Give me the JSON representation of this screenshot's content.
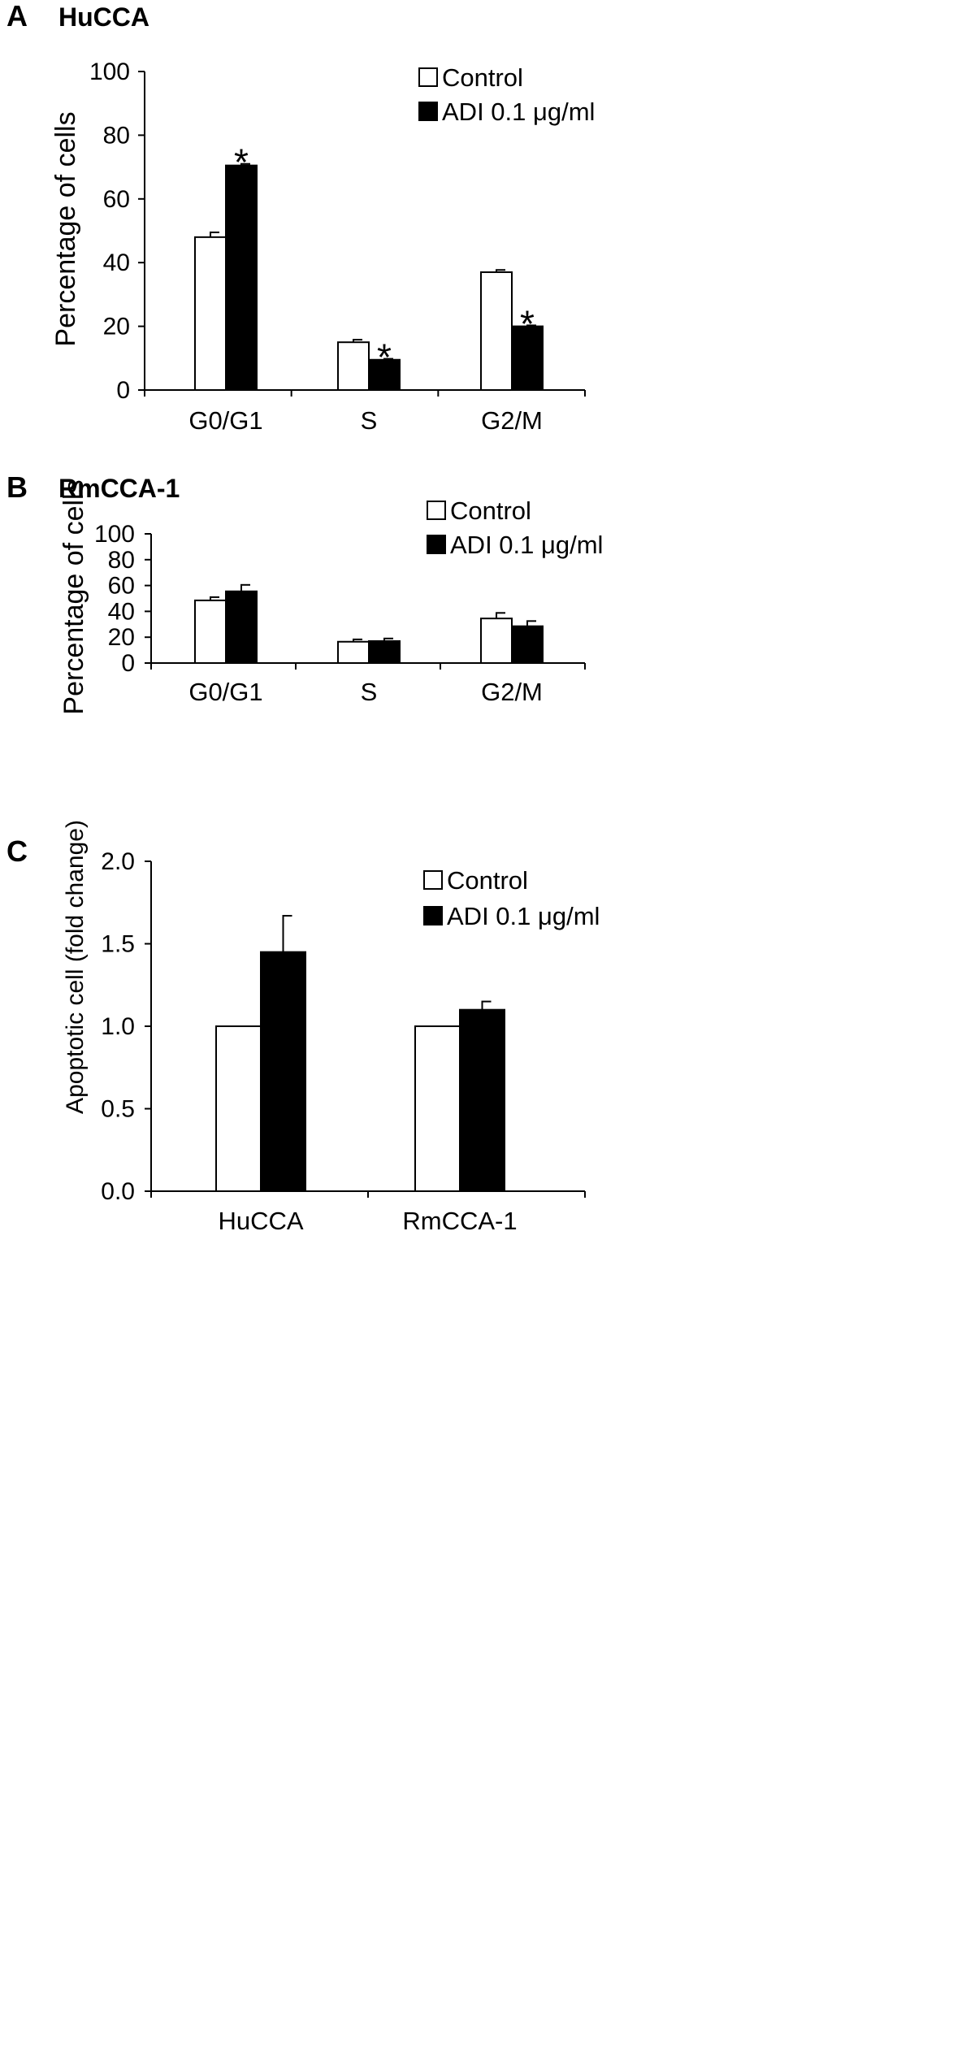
{
  "chart_data": [
    {
      "panel": "A",
      "type": "bar",
      "title": "HuCCA",
      "xlabel": "",
      "ylabel": "Percentage of cells",
      "ylim": [
        0,
        100
      ],
      "yticks": [
        "0",
        "20",
        "40",
        "60",
        "80",
        "100"
      ],
      "categories": [
        "G0/G1",
        "S",
        "G2/M"
      ],
      "series": [
        {
          "name": "Control",
          "color": "#ffffff",
          "values": [
            48,
            15,
            37
          ],
          "errors": [
            1.5,
            0.8,
            0.7
          ]
        },
        {
          "name": "ADI 0.1 μg/ml",
          "color": "#000000",
          "values": [
            70.5,
            9.5,
            20
          ],
          "errors": [
            0.5,
            0.3,
            0.3
          ]
        }
      ],
      "annotations": [
        "*",
        "*",
        "*"
      ],
      "legend": "top-right",
      "grid": false
    },
    {
      "panel": "B",
      "type": "bar",
      "title": "RmCCA-1",
      "xlabel": "",
      "ylabel": "Percentage of cells",
      "ylim": [
        0,
        100
      ],
      "yticks": [
        "0",
        "20",
        "40",
        "60",
        "80",
        "100"
      ],
      "categories": [
        "G0/G1",
        "S",
        "G2/M"
      ],
      "series": [
        {
          "name": "Control",
          "color": "#ffffff",
          "values": [
            48.5,
            16.5,
            34.5
          ],
          "errors": [
            2.5,
            1.8,
            4.3
          ]
        },
        {
          "name": "ADI 0.1 μg/ml",
          "color": "#000000",
          "values": [
            55.5,
            17,
            28.5
          ],
          "errors": [
            5,
            2,
            4
          ]
        }
      ],
      "annotations": [],
      "legend": "top-right",
      "grid": false
    },
    {
      "panel": "C",
      "type": "bar",
      "title": "",
      "xlabel": "",
      "ylabel": "Apoptotic cell (fold change)",
      "ylim": [
        0,
        2.0
      ],
      "yticks": [
        "0.0",
        "0.5",
        "1.0",
        "1.5",
        "2.0"
      ],
      "categories": [
        "HuCCA",
        "RmCCA-1"
      ],
      "series": [
        {
          "name": "Control",
          "color": "#ffffff",
          "values": [
            1.0,
            1.0
          ],
          "errors": [
            0,
            0
          ]
        },
        {
          "name": "ADI 0.1 μg/ml",
          "color": "#000000",
          "values": [
            1.45,
            1.1
          ],
          "errors": [
            0.22,
            0.05
          ]
        }
      ],
      "annotations": [],
      "legend": "top-right",
      "grid": false
    }
  ]
}
